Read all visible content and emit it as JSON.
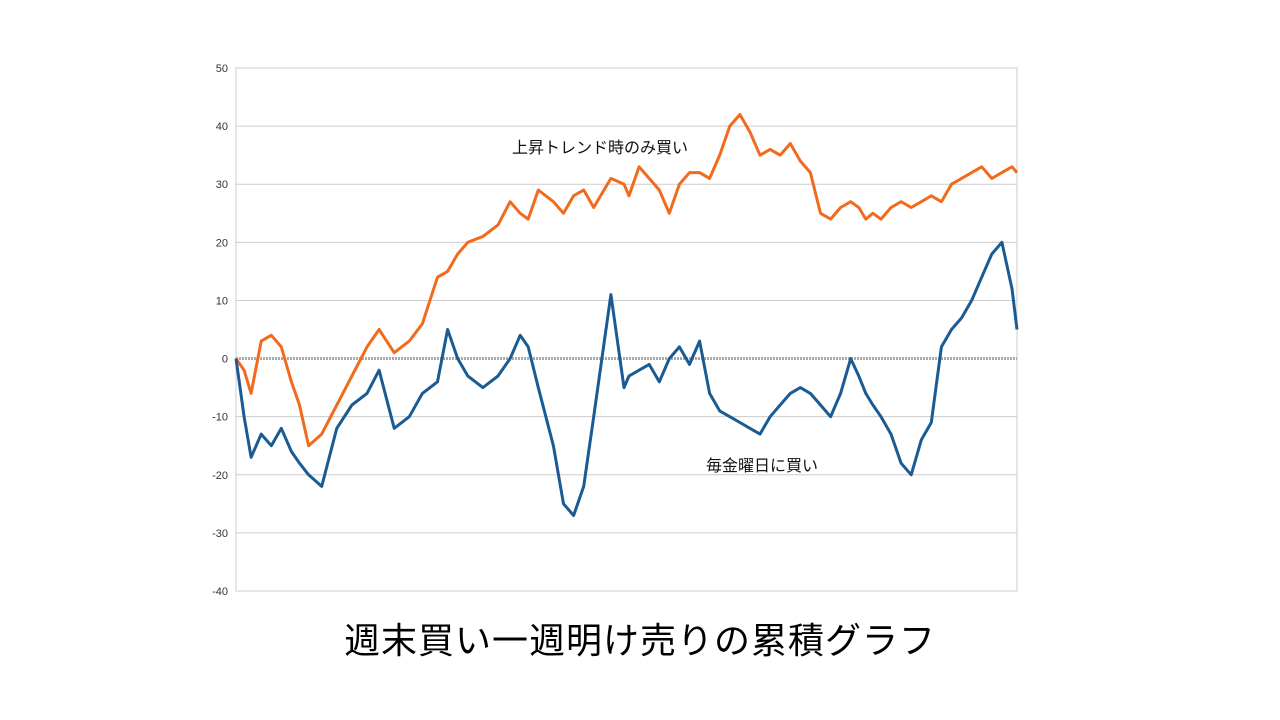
{
  "caption": "週末買い一週明け売りの累積グラフ",
  "colors": {
    "series_up_trend": "#f26b1d",
    "series_friday": "#1a5b93",
    "grid": "#cccccc",
    "zero_line": "#aaaaaa"
  },
  "chart_data": {
    "type": "line",
    "title": "",
    "xlabel": "",
    "ylabel": "",
    "ylim": [
      -40,
      50
    ],
    "yticks": [
      50,
      40,
      30,
      20,
      10,
      0,
      -10,
      -20,
      -30,
      -40
    ],
    "grid": true,
    "x": [
      0,
      8,
      15,
      25,
      35,
      45,
      55,
      63,
      72,
      85,
      100,
      115,
      130,
      142,
      157,
      172,
      185,
      200,
      210,
      220,
      230,
      245,
      260,
      272,
      282,
      290,
      300,
      315,
      325,
      335,
      345,
      355,
      372,
      385,
      390,
      400,
      410,
      420,
      430,
      440,
      450,
      460,
      470,
      480,
      490,
      500,
      510,
      520,
      530,
      540,
      550,
      560,
      570,
      580,
      590,
      600,
      610,
      618,
      625,
      632,
      640,
      650,
      660,
      670,
      680,
      690,
      700,
      710,
      720,
      730,
      740,
      750,
      760,
      770,
      775
    ],
    "series": [
      {
        "name": "上昇トレンド時のみ買い",
        "values": [
          0,
          -2,
          -6,
          3,
          4,
          2,
          -4,
          -8,
          -15,
          -13,
          -8,
          -3,
          2,
          5,
          1,
          3,
          6,
          14,
          15,
          18,
          20,
          21,
          23,
          27,
          25,
          24,
          29,
          27,
          25,
          28,
          29,
          26,
          31,
          30,
          28,
          33,
          31,
          29,
          25,
          30,
          32,
          32,
          31,
          35,
          40,
          42,
          39,
          35,
          36,
          35,
          37,
          34,
          32,
          25,
          24,
          26,
          27,
          26,
          24,
          25,
          24,
          26,
          27,
          26,
          27,
          28,
          27,
          30,
          31,
          32,
          33,
          31,
          32,
          33,
          32
        ]
      },
      {
        "name": "毎金曜日に買い",
        "values": [
          0,
          -10,
          -17,
          -13,
          -15,
          -12,
          -16,
          -18,
          -20,
          -22,
          -12,
          -8,
          -6,
          -2,
          -12,
          -10,
          -6,
          -4,
          5,
          0,
          -3,
          -5,
          -3,
          0,
          4,
          2,
          -5,
          -15,
          -25,
          -27,
          -22,
          -10,
          11,
          -5,
          -3,
          -2,
          -1,
          -4,
          0,
          2,
          -1,
          3,
          -6,
          -9,
          -10,
          -11,
          -12,
          -13,
          -10,
          -8,
          -6,
          -5,
          -6,
          -8,
          -10,
          -6,
          0,
          -3,
          -6,
          -8,
          -10,
          -13,
          -18,
          -20,
          -14,
          -11,
          2,
          5,
          7,
          10,
          14,
          18,
          20,
          12,
          5
        ]
      }
    ],
    "annotations": [
      {
        "text": "上昇トレンド時のみ買い",
        "series": 0
      },
      {
        "text": "毎金曜日に買い",
        "series": 1
      }
    ]
  }
}
